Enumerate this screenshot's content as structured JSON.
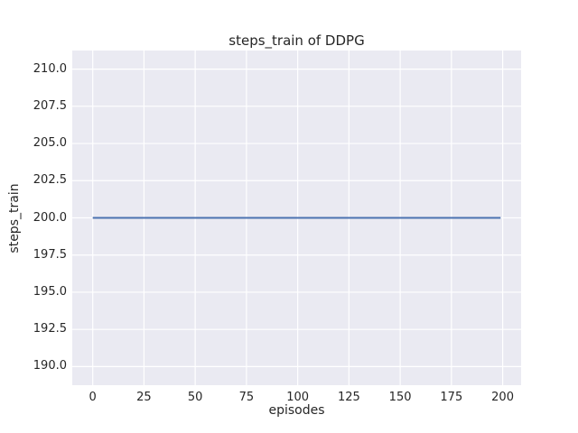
{
  "chart_data": {
    "type": "line",
    "title": "steps_train of DDPG",
    "xlabel": "episodes",
    "ylabel": "steps_train",
    "xlim": [
      -10,
      209
    ],
    "ylim": [
      188.75,
      211.25
    ],
    "xticks": [
      0,
      25,
      50,
      75,
      100,
      125,
      150,
      175,
      200
    ],
    "xtick_labels": [
      "0",
      "25",
      "50",
      "75",
      "100",
      "125",
      "150",
      "175",
      "200"
    ],
    "yticks": [
      190.0,
      192.5,
      195.0,
      197.5,
      200.0,
      202.5,
      205.0,
      207.5,
      210.0
    ],
    "ytick_labels": [
      "190.0",
      "192.5",
      "195.0",
      "197.5",
      "200.0",
      "202.5",
      "205.0",
      "207.5",
      "210.0"
    ],
    "grid": true,
    "legend": "none",
    "series": [
      {
        "name": "steps_train",
        "color": "#4c72b0",
        "x": [
          0,
          199
        ],
        "y": [
          200,
          200
        ]
      }
    ],
    "colors": {
      "plot_background": "#eaeaf2",
      "gridline": "#ffffff",
      "text": "#262626",
      "line": "#4c72b0",
      "figure_background": "#ffffff"
    }
  }
}
